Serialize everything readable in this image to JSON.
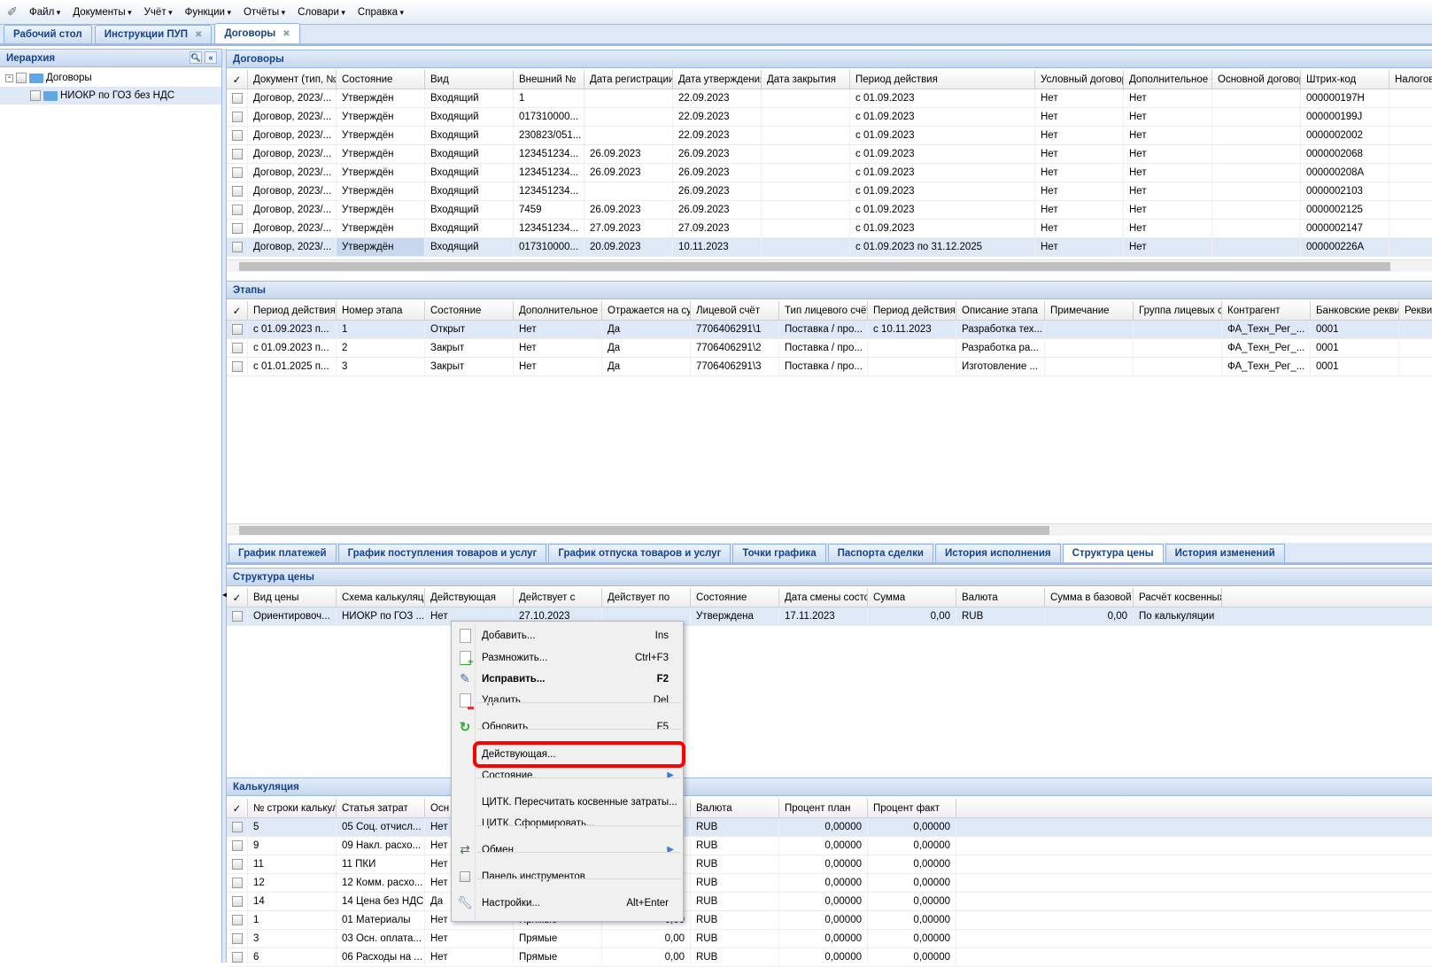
{
  "menubar": {
    "items": [
      "Файл",
      "Документы",
      "Учёт",
      "Функции",
      "Отчёты",
      "Словари",
      "Справка"
    ]
  },
  "tabs": [
    {
      "label": "Рабочий стол"
    },
    {
      "label": "Инструкции ПУП"
    },
    {
      "label": "Договоры"
    }
  ],
  "hierarchy": {
    "title": "Иерархия",
    "items": [
      {
        "label": "Договоры"
      },
      {
        "label": "НИОКР по ГОЗ без НДС"
      }
    ]
  },
  "contracts": {
    "title": "Договоры",
    "columns": [
      "Документ (тип, №",
      "Состояние",
      "Вид",
      "Внешний №",
      "Дата регистрации.",
      "Дата утверждения",
      "Дата закрытия",
      "Период действия",
      "Условный договор",
      "Дополнительное с",
      "Основной договор",
      "Штрих-код",
      "Налогов"
    ],
    "rows": [
      [
        "Договор, 2023/...",
        "Утверждён",
        "Входящий",
        "1",
        "",
        "22.09.2023",
        "",
        "с 01.09.2023",
        "Нет",
        "Нет",
        "",
        "000000197H",
        ""
      ],
      [
        "Договор, 2023/...",
        "Утверждён",
        "Входящий",
        "017310000...",
        "",
        "22.09.2023",
        "",
        "с 01.09.2023",
        "Нет",
        "Нет",
        "",
        "000000199J",
        ""
      ],
      [
        "Договор, 2023/...",
        "Утверждён",
        "Входящий",
        "230823/051...",
        "",
        "22.09.2023",
        "",
        "с 01.09.2023",
        "Нет",
        "Нет",
        "",
        "0000002002",
        ""
      ],
      [
        "Договор, 2023/...",
        "Утверждён",
        "Входящий",
        "123451234...",
        "26.09.2023",
        "26.09.2023",
        "",
        "с 01.09.2023",
        "Нет",
        "Нет",
        "",
        "0000002068",
        ""
      ],
      [
        "Договор, 2023/...",
        "Утверждён",
        "Входящий",
        "123451234...",
        "26.09.2023",
        "26.09.2023",
        "",
        "с 01.09.2023",
        "Нет",
        "Нет",
        "",
        "000000208A",
        ""
      ],
      [
        "Договор, 2023/...",
        "Утверждён",
        "Входящий",
        "123451234...",
        "",
        "26.09.2023",
        "",
        "с 01.09.2023",
        "Нет",
        "Нет",
        "",
        "0000002103",
        ""
      ],
      [
        "Договор, 2023/...",
        "Утверждён",
        "Входящий",
        "7459",
        "26.09.2023",
        "26.09.2023",
        "",
        "с 01.09.2023",
        "Нет",
        "Нет",
        "",
        "0000002125",
        ""
      ],
      [
        "Договор, 2023/...",
        "Утверждён",
        "Входящий",
        "123451234...",
        "27.09.2023",
        "27.09.2023",
        "",
        "с 01.09.2023",
        "Нет",
        "Нет",
        "",
        "0000002147",
        ""
      ],
      [
        "Договор, 2023/...",
        "Утверждён",
        "Входящий",
        "017310000...",
        "20.09.2023",
        "10.11.2023",
        "",
        "с 01.09.2023 по 31.12.2025",
        "Нет",
        "Нет",
        "",
        "000000226A",
        ""
      ]
    ]
  },
  "stages": {
    "title": "Этапы",
    "columns": [
      "Период действия...",
      "Номер этапа",
      "Состояние",
      "Дополнительное с",
      "Отражается на сум",
      "Лицевой счёт",
      "Тип лицевого счёт",
      "Период действия л",
      "Описание этапа",
      "Примечание",
      "Группа лицевых сч",
      "Контрагент",
      "Банковские рекви:",
      "Рекви"
    ],
    "rows": [
      [
        "с 01.09.2023 п...",
        "1",
        "Открыт",
        "Нет",
        "Да",
        "7706406291\\1",
        "Поставка / про...",
        "с 10.11.2023",
        "Разработка тех...",
        "",
        "",
        "ФА_Техн_Рег_...",
        "0001",
        ""
      ],
      [
        "с 01.09.2023 п...",
        "2",
        "Закрыт",
        "Нет",
        "Да",
        "7706406291\\2",
        "Поставка / про...",
        "",
        "Разработка ра...",
        "",
        "",
        "ФА_Техн_Рег_...",
        "0001",
        ""
      ],
      [
        "с 01.01.2025 п...",
        "3",
        "Закрыт",
        "Нет",
        "Да",
        "7706406291\\3",
        "Поставка / про...",
        "",
        "Изготовление ...",
        "",
        "",
        "ФА_Техн_Рег_...",
        "0001",
        ""
      ]
    ]
  },
  "detail_tabs": [
    {
      "label": "График платежей"
    },
    {
      "label": "График поступления товаров и услуг"
    },
    {
      "label": "График отпуска товаров и услуг"
    },
    {
      "label": "Точки графика"
    },
    {
      "label": "Паспорта сделки"
    },
    {
      "label": "История исполнения"
    },
    {
      "label": "Структура цены"
    },
    {
      "label": "История изменений"
    }
  ],
  "price": {
    "title": "Структура цены",
    "columns": [
      "Вид цены",
      "Схема калькуляци",
      "Действующая",
      "Действует с",
      "Действует по",
      "Состояние",
      "Дата смены состоя",
      "Сумма",
      "Валюта",
      "Сумма в базовой в",
      "Расчёт косвенных"
    ],
    "rows": [
      [
        "Ориентировоч...",
        "НИОКР по ГОЗ ...",
        "Нет",
        "27.10.2023",
        "",
        "Утверждена",
        "17.11.2023",
        "0,00",
        "RUB",
        "0,00",
        "По калькуляции"
      ]
    ]
  },
  "calc": {
    "title": "Калькуляция",
    "columns": [
      "№ строки калькул",
      "Статья затрат",
      "Осн",
      "",
      "",
      "Валюта",
      "Процент план",
      "Процент факт"
    ],
    "rows": [
      [
        "5",
        "05 Соц. отчисл...",
        "Нет",
        "",
        "",
        "RUB",
        "0,00000",
        "0,00000"
      ],
      [
        "9",
        "09 Накл. расхо...",
        "Нет",
        "",
        "",
        "RUB",
        "0,00000",
        "0,00000"
      ],
      [
        "11",
        "11 ПКИ",
        "Нет",
        "",
        "",
        "RUB",
        "0,00000",
        "0,00000"
      ],
      [
        "12",
        "12 Комм. расхо...",
        "Нет",
        "",
        "",
        "RUB",
        "0,00000",
        "0,00000"
      ],
      [
        "14",
        "14 Цена без НДС",
        "Да",
        "",
        "",
        "RUB",
        "0,00000",
        "0,00000"
      ],
      [
        "1",
        "01 Материалы",
        "Нет",
        "Прямые",
        "0,00",
        "RUB",
        "0,00000",
        "0,00000"
      ],
      [
        "3",
        "03 Осн. оплата...",
        "Нет",
        "Прямые",
        "0,00",
        "RUB",
        "0,00000",
        "0,00000"
      ],
      [
        "6",
        "06 Расходы на ...",
        "Нет",
        "Прямые",
        "0,00",
        "RUB",
        "0,00000",
        "0,00000"
      ]
    ]
  },
  "context_menu": {
    "items": [
      {
        "label": "Добавить...",
        "shortcut": "Ins",
        "icon": "document-icon"
      },
      {
        "label": "Размножить...",
        "shortcut": "Ctrl+F3",
        "icon": "document-add-icon"
      },
      {
        "label": "Исправить...",
        "shortcut": "F2",
        "icon": "edit-icon"
      },
      {
        "label": "Удалить",
        "shortcut": "Del",
        "icon": "document-delete-icon"
      },
      {
        "label": "Обновить",
        "shortcut": "F5",
        "icon": "refresh-icon"
      },
      {
        "label": "Действующая...",
        "shortcut": "",
        "icon": ""
      },
      {
        "label": "Состояние",
        "shortcut": "",
        "icon": ""
      },
      {
        "label": "ЦИТК. Пересчитать косвенные затраты...",
        "shortcut": "",
        "icon": ""
      },
      {
        "label": "ЦИТК. Сформировать...",
        "shortcut": "",
        "icon": ""
      },
      {
        "label": "Обмен",
        "shortcut": "",
        "icon": "exchange-icon"
      },
      {
        "label": "Панель инструментов",
        "shortcut": "",
        "icon": "checkbox-icon"
      },
      {
        "label": "Настройки...",
        "shortcut": "Alt+Enter",
        "icon": "wrench-icon"
      }
    ]
  },
  "colors": {
    "accent": "#15428b",
    "selection": "#dfe8f6",
    "highlight": "#ff0000"
  }
}
